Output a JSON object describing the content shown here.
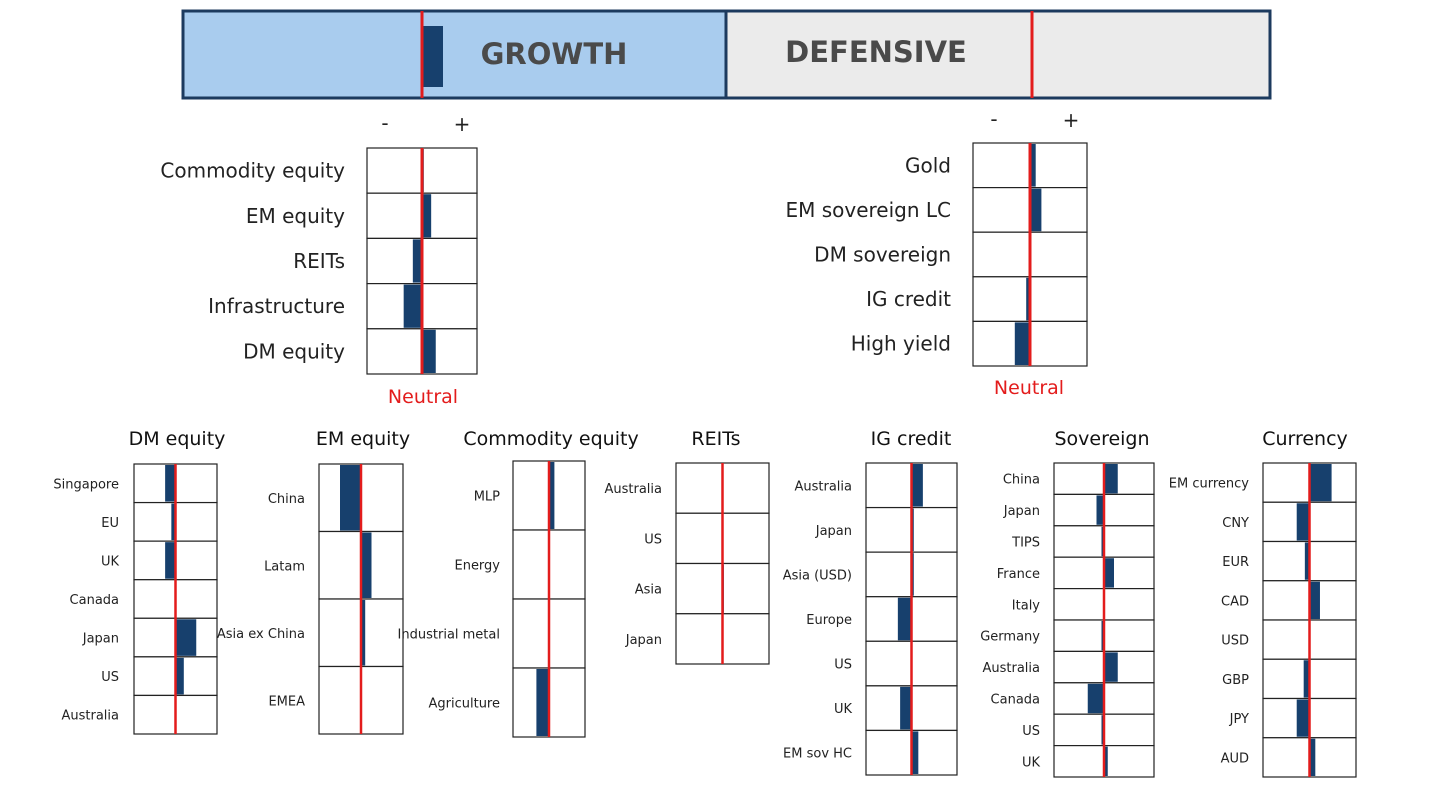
{
  "header": {
    "growth_label": "GROWTH",
    "defensive_label": "DEFENSIVE",
    "minus": "-",
    "plus": "+",
    "neutral_label": "Neutral",
    "colors": {
      "growth_fill": "#a9ccee",
      "defensive_fill": "#ebebeb",
      "border": "#1c3a5e",
      "position": "#17406d",
      "neutral": "#e31c1c"
    }
  },
  "chart_data": [
    {
      "id": "overall",
      "type": "bar",
      "categories": [
        "Growth",
        "Defensive"
      ],
      "values": [
        0.5,
        0
      ],
      "xlim": [
        -3,
        3
      ]
    },
    {
      "id": "growth",
      "type": "bar",
      "orientation": "horizontal",
      "categories": [
        "Commodity equity",
        "EM equity",
        "REITs",
        "Infrastructure",
        "DM equity"
      ],
      "values": [
        0.1,
        0.5,
        -0.5,
        -1.0,
        0.75
      ],
      "xlim": [
        -3,
        3
      ]
    },
    {
      "id": "defensive",
      "type": "bar",
      "orientation": "horizontal",
      "categories": [
        "Gold",
        "EM sovereign LC",
        "DM sovereign",
        "IG credit",
        "High yield"
      ],
      "values": [
        0.3,
        0.6,
        0,
        -0.2,
        -0.8
      ],
      "xlim": [
        -3,
        3
      ]
    },
    {
      "id": "dm_equity",
      "type": "bar",
      "orientation": "horizontal",
      "title": "DM equity",
      "categories": [
        "Singapore",
        "EU",
        "UK",
        "Canada",
        "Japan",
        "US",
        "Australia"
      ],
      "values": [
        -0.5,
        -0.2,
        -0.5,
        0,
        1.0,
        0.4,
        0
      ],
      "xlim": [
        -2,
        2
      ]
    },
    {
      "id": "em_equity",
      "type": "bar",
      "orientation": "horizontal",
      "title": "EM equity",
      "categories": [
        "China",
        "Latam",
        "Asia ex China",
        "EMEA"
      ],
      "values": [
        -1.0,
        0.5,
        0.2,
        0
      ],
      "xlim": [
        -2,
        2
      ]
    },
    {
      "id": "commodity_equity",
      "type": "bar",
      "orientation": "horizontal",
      "title": "Commodity equity",
      "categories": [
        "MLP",
        "Energy",
        "Industrial metal",
        "Agriculture"
      ],
      "values": [
        0.3,
        0,
        0,
        -0.7
      ],
      "xlim": [
        -2,
        2
      ]
    },
    {
      "id": "reits",
      "type": "bar",
      "orientation": "horizontal",
      "title": "REITs",
      "categories": [
        "Australia",
        "US",
        "Asia",
        "Japan"
      ],
      "values": [
        0,
        0,
        0.06,
        0
      ],
      "xlim": [
        -2,
        2
      ]
    },
    {
      "id": "ig_credit",
      "type": "bar",
      "orientation": "horizontal",
      "title": "IG credit",
      "categories": [
        "Australia",
        "Japan",
        "Asia (USD)",
        "Europe",
        "US",
        "UK",
        "EM sov HC"
      ],
      "values": [
        0.5,
        0.1,
        0.1,
        -0.6,
        0,
        -0.5,
        0.3
      ],
      "xlim": [
        -2,
        2
      ]
    },
    {
      "id": "sovereign",
      "type": "bar",
      "orientation": "horizontal",
      "title": "Sovereign",
      "categories": [
        "China",
        "Japan",
        "TIPS",
        "France",
        "Italy",
        "Germany",
        "Australia",
        "Canada",
        "US",
        "UK"
      ],
      "values": [
        0.55,
        -0.3,
        -0.1,
        0.4,
        0,
        -0.1,
        0.55,
        -0.65,
        -0.1,
        0.15
      ],
      "xlim": [
        -2,
        2
      ]
    },
    {
      "id": "currency",
      "type": "bar",
      "orientation": "horizontal",
      "title": "Currency",
      "categories": [
        "EM currency",
        "CNY",
        "EUR",
        "CAD",
        "USD",
        "GBP",
        "JPY",
        "AUD"
      ],
      "values": [
        0.95,
        -0.55,
        -0.2,
        0.45,
        0,
        -0.25,
        -0.55,
        0.25
      ],
      "xlim": [
        -2,
        2
      ]
    }
  ]
}
